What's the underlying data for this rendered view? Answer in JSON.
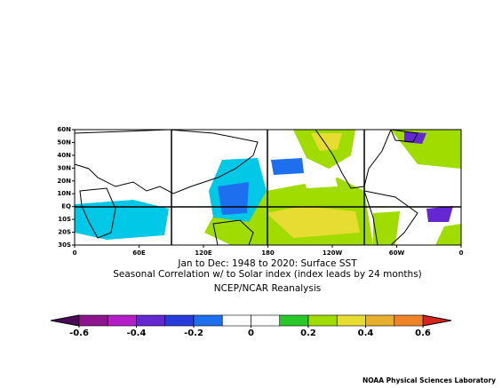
{
  "chart_data": {
    "type": "map",
    "title": "Jan to Dec: 1948 to 2020: Surface SST",
    "subtitle": "Seasonal Correlation w/  to  Solar index (index leads by 24 months)",
    "source": "NCEP/NCAR Reanalysis",
    "lonlim": [
      0,
      360
    ],
    "latlim": [
      -30,
      60
    ],
    "lonticks": [
      {
        "value": 0,
        "label": "0"
      },
      {
        "value": 60,
        "label": "60E"
      },
      {
        "value": 120,
        "label": "120E"
      },
      {
        "value": 180,
        "label": "180"
      },
      {
        "value": 240,
        "label": "120W"
      },
      {
        "value": 300,
        "label": "60W"
      },
      {
        "value": 360,
        "label": "0"
      }
    ],
    "latticks": [
      {
        "value": 60,
        "label": "60N"
      },
      {
        "value": 50,
        "label": "50N"
      },
      {
        "value": 40,
        "label": "40N"
      },
      {
        "value": 30,
        "label": "30N"
      },
      {
        "value": 20,
        "label": "20N"
      },
      {
        "value": 10,
        "label": "10N"
      },
      {
        "value": 0,
        "label": "EQ"
      },
      {
        "value": -10,
        "label": "10S"
      },
      {
        "value": -20,
        "label": "20S"
      },
      {
        "value": -30,
        "label": "30S"
      }
    ],
    "colorbar": {
      "lim": [
        -0.6,
        0.6
      ],
      "ticks": [
        -0.6,
        -0.4,
        -0.2,
        0,
        0.2,
        0.4,
        0.6
      ],
      "under_color": "#4b0a55",
      "over_color": "#d7261e",
      "colors": [
        "#8c148c",
        "#b41ec8",
        "#6428d2",
        "#283cdc",
        "#1e6ef0",
        "#ffffff",
        "#ffffff",
        "#28c828",
        "#a0dc00",
        "#e6dc32",
        "#e6af2d",
        "#f08228"
      ]
    },
    "credit": "NOAA Physical Sciences Laboratory"
  }
}
